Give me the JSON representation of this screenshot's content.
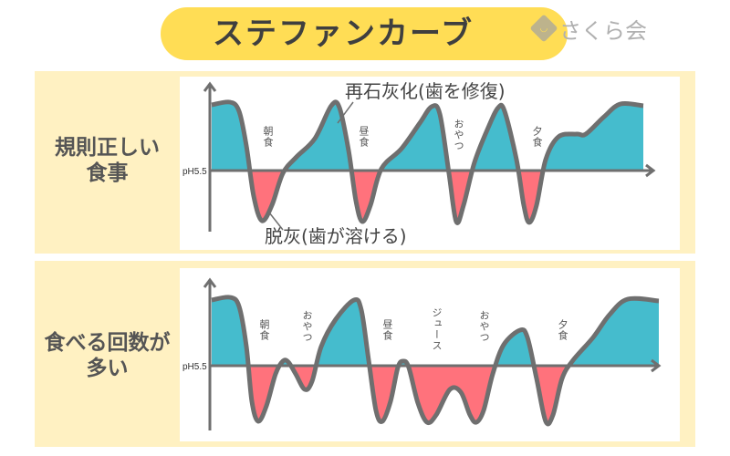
{
  "header": {
    "title": "ステファンカーブ",
    "logo_text": "さくら会",
    "logo_icon": "smile-diamond-icon"
  },
  "colors": {
    "title_bg": "#ffdd55",
    "panel_bg": "#fff1c2",
    "remineralization": "#45bccd",
    "demineralization": "#ff727c",
    "curve": "#6f6f6f"
  },
  "axis_label": "pH5.5",
  "panels": [
    {
      "label_line1": "規則正しい",
      "label_line2": "食事",
      "annotations": {
        "remineralization": "再石灰化(歯を修復)",
        "demineralization": "脱灰(歯が溶ける)"
      },
      "events": [
        "朝食",
        "昼食",
        "おやつ",
        "夕食"
      ]
    },
    {
      "label_line1": "食べる回数が",
      "label_line2": "多い",
      "events": [
        "朝食",
        "おやつ",
        "昼食",
        "ジュース",
        "おやつ",
        "夕食"
      ]
    }
  ]
}
